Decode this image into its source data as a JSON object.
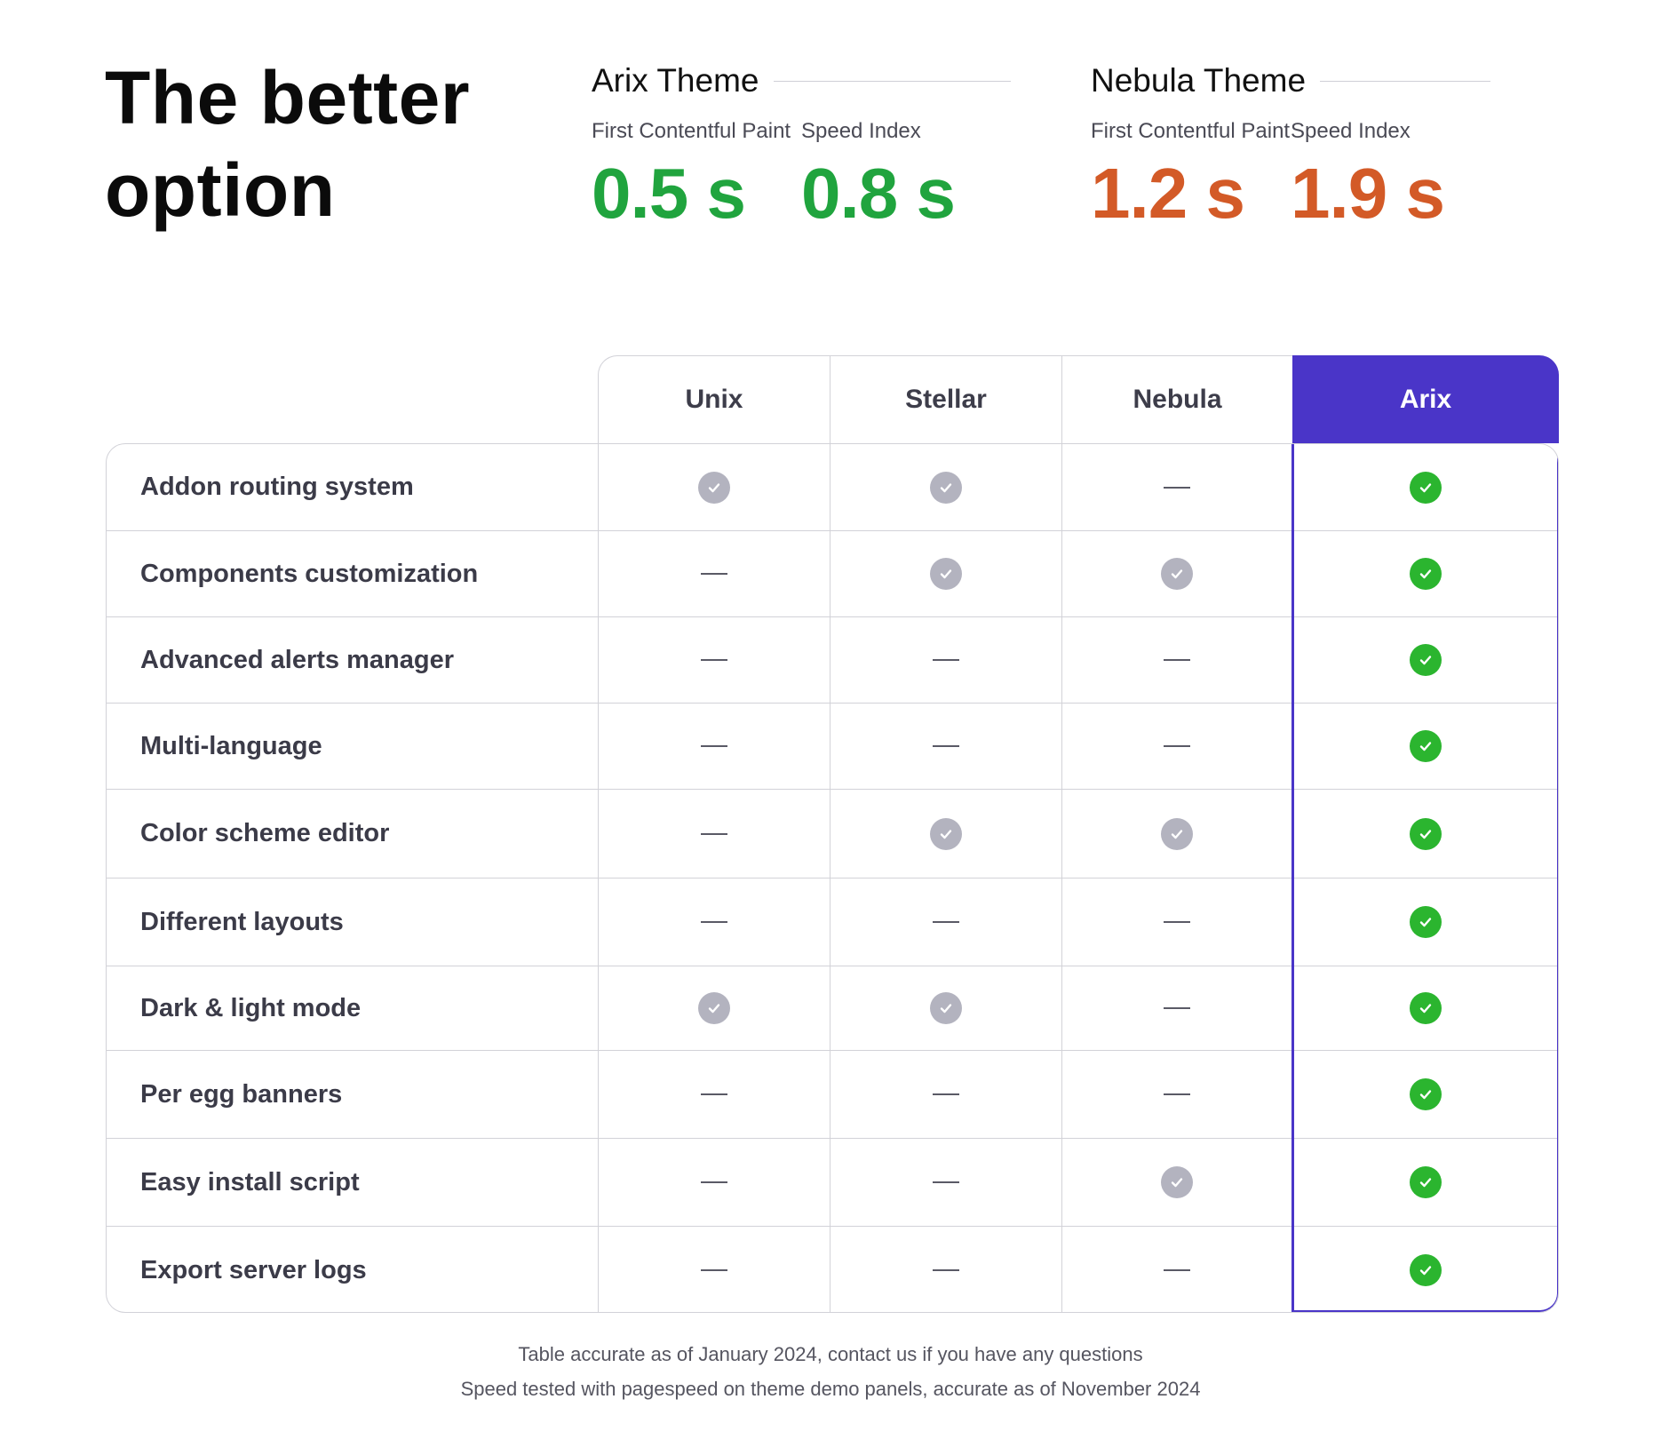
{
  "headline": {
    "line1": "The better",
    "line2": "option"
  },
  "themes": [
    {
      "name": "Arix Theme",
      "metrics": [
        {
          "label": "First Contentful Paint",
          "value": "0.5 s",
          "status": "good"
        },
        {
          "label": "Speed Index",
          "value": "0.8 s",
          "status": "good"
        }
      ]
    },
    {
      "name": "Nebula Theme",
      "metrics": [
        {
          "label": "First Contentful Paint",
          "value": "1.2 s",
          "status": "bad"
        },
        {
          "label": "Speed Index",
          "value": "1.9 s",
          "status": "bad"
        }
      ]
    }
  ],
  "table": {
    "columns": [
      "Unix",
      "Stellar",
      "Nebula",
      "Arix"
    ],
    "rows": [
      {
        "feature": "Addon routing system",
        "values": [
          "check",
          "check",
          "dash",
          "check"
        ]
      },
      {
        "feature": "Components customization",
        "values": [
          "dash",
          "check",
          "check",
          "check"
        ]
      },
      {
        "feature": "Advanced alerts manager",
        "values": [
          "dash",
          "dash",
          "dash",
          "check"
        ]
      },
      {
        "feature": "Multi-language",
        "values": [
          "dash",
          "dash",
          "dash",
          "check"
        ]
      },
      {
        "feature": "Color scheme editor",
        "values": [
          "dash",
          "check",
          "check",
          "check"
        ]
      },
      {
        "feature": "Different layouts",
        "values": [
          "dash",
          "dash",
          "dash",
          "check"
        ]
      },
      {
        "feature": "Dark & light mode",
        "values": [
          "check",
          "check",
          "dash",
          "check"
        ]
      },
      {
        "feature": "Per egg banners",
        "values": [
          "dash",
          "dash",
          "dash",
          "check"
        ]
      },
      {
        "feature": "Easy install script",
        "values": [
          "dash",
          "dash",
          "check",
          "check"
        ]
      },
      {
        "feature": "Export server logs",
        "values": [
          "dash",
          "dash",
          "dash",
          "check"
        ]
      }
    ]
  },
  "footnotes": {
    "line1": "Table accurate as of January 2024, contact us if you have any questions",
    "line2": "Speed tested with pagespeed on theme demo panels, accurate as of November 2024"
  },
  "colors": {
    "accent": "#4a35c8",
    "good": "#20a43e",
    "bad": "#d35a27",
    "check_green": "#2bb52f",
    "check_gray": "#b3b3bf"
  }
}
